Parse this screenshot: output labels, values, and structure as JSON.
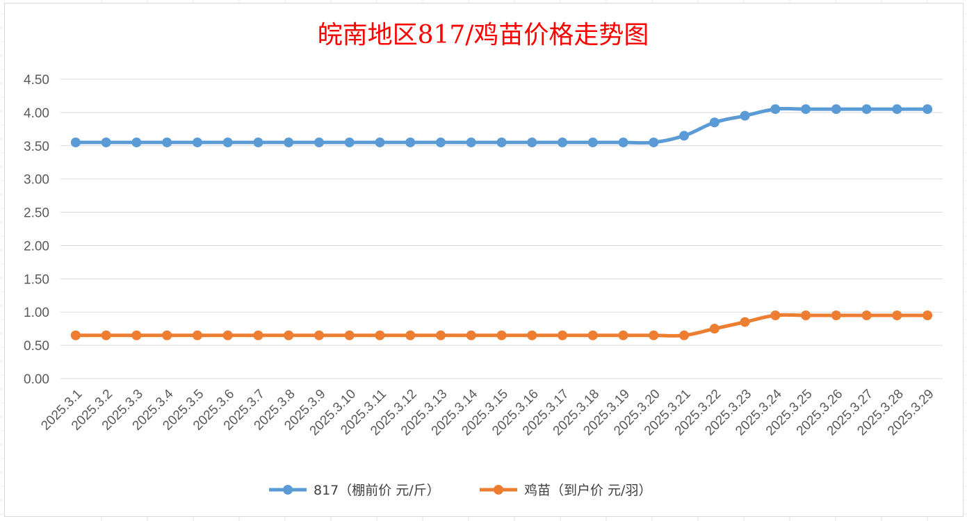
{
  "chart_data": {
    "type": "line",
    "title": "皖南地区817/鸡苗价格走势图",
    "categories": [
      "2025.3.1",
      "2025.3.2",
      "2025.3.3",
      "2025.3.4",
      "2025.3.5",
      "2025.3.6",
      "2025.3.7",
      "2025.3.8",
      "2025.3.9",
      "2025.3.10",
      "2025.3.11",
      "2025.3.12",
      "2025.3.13",
      "2025.3.14",
      "2025.3.15",
      "2025.3.16",
      "2025.3.17",
      "2025.3.18",
      "2025.3.19",
      "2025.3.20",
      "2025.3.21",
      "2025.3.22",
      "2025.3.23",
      "2025.3.24",
      "2025.3.25",
      "2025.3.26",
      "2025.3.27",
      "2025.3.28",
      "2025.3.29"
    ],
    "yticks": [
      "0.00",
      "0.50",
      "1.00",
      "1.50",
      "2.00",
      "2.50",
      "3.00",
      "3.50",
      "4.00",
      "4.50"
    ],
    "ylim": [
      0,
      4.5
    ],
    "grid": true,
    "legend_position": "bottom",
    "series": [
      {
        "name": "817（棚前价 元/斤）",
        "color": "#5b9bd5",
        "values": [
          3.55,
          3.55,
          3.55,
          3.55,
          3.55,
          3.55,
          3.55,
          3.55,
          3.55,
          3.55,
          3.55,
          3.55,
          3.55,
          3.55,
          3.55,
          3.55,
          3.55,
          3.55,
          3.55,
          3.55,
          3.65,
          3.85,
          3.95,
          4.05,
          4.05,
          4.05,
          4.05,
          4.05,
          4.05
        ]
      },
      {
        "name": "鸡苗（到户价 元/羽）",
        "color": "#ed7d31",
        "values": [
          0.65,
          0.65,
          0.65,
          0.65,
          0.65,
          0.65,
          0.65,
          0.65,
          0.65,
          0.65,
          0.65,
          0.65,
          0.65,
          0.65,
          0.65,
          0.65,
          0.65,
          0.65,
          0.65,
          0.65,
          0.65,
          0.75,
          0.85,
          0.95,
          0.95,
          0.95,
          0.95,
          0.95,
          0.95
        ]
      }
    ]
  }
}
